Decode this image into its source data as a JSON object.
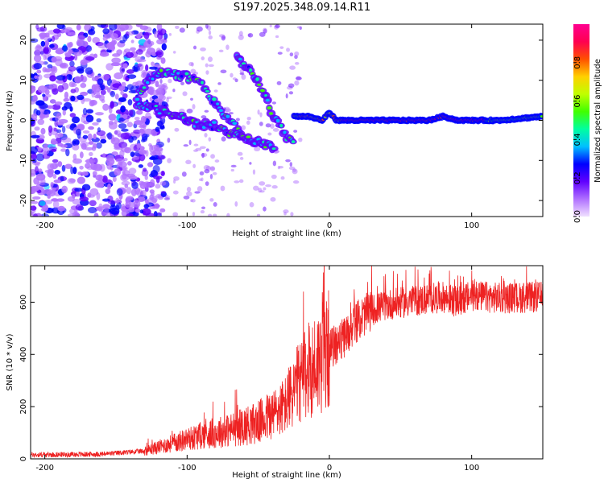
{
  "title": "S197.2025.348.09.14.R11",
  "colors": {
    "snr_line": "#ee2222",
    "axis": "#000000"
  },
  "chart_data": [
    {
      "type": "heatmap",
      "xlabel": "Height of straight line (km)",
      "ylabel": "Frequency (Hz)",
      "xlim": [
        -210,
        150
      ],
      "ylim": [
        -24,
        24
      ],
      "xticks": [
        -200,
        -100,
        0,
        100
      ],
      "yticks": [
        -20,
        -10,
        0,
        10,
        20
      ],
      "colorbar": {
        "label": "Normalized spectral amplitude",
        "range": [
          0,
          1
        ],
        "ticks": [
          "0.0",
          "0.2",
          "0.4",
          "0.6",
          "0.8"
        ],
        "tick_values": [
          0,
          0.2,
          0.4,
          0.6,
          0.8
        ],
        "colormap": [
          "#f0e0ff",
          "#b070ff",
          "#6000ff",
          "#0000ff",
          "#00c0ff",
          "#00ffa0",
          "#40ff00",
          "#c0ff00",
          "#ffd000",
          "#ff5000",
          "#ff0050",
          "#ff0090"
        ]
      },
      "features": [
        {
          "name": "upper branch",
          "x": [
            -135,
            -125,
            -115,
            -100,
            -90,
            -80,
            -70,
            -60
          ],
          "y": [
            6,
            11,
            12,
            11,
            9,
            4,
            0,
            -4
          ]
        },
        {
          "name": "lower branch",
          "x": [
            -135,
            -125,
            -115,
            -105,
            -95,
            -85,
            -75,
            -65,
            -55,
            -45,
            -38
          ],
          "y": [
            4,
            3,
            2,
            1,
            -1,
            -1,
            -2,
            -4,
            -5,
            -6,
            -7
          ]
        },
        {
          "name": "steep streaks",
          "x": [
            -65,
            -55,
            -45,
            -38,
            -30,
            -25
          ],
          "y": [
            16,
            12,
            6,
            0,
            -4,
            -6
          ]
        },
        {
          "name": "carrier",
          "x": [
            -25,
            -15,
            -5,
            0,
            5,
            15,
            40,
            70,
            80,
            90,
            100,
            120,
            150
          ],
          "y": [
            1,
            1,
            0,
            2,
            0,
            0,
            0,
            0,
            1,
            0,
            0,
            0,
            1
          ]
        }
      ]
    },
    {
      "type": "line",
      "xlabel": "Height of straight line (km)",
      "ylabel": "SNR (10 * v/v)",
      "xlim": [
        -210,
        150
      ],
      "ylim": [
        0,
        740
      ],
      "xticks": [
        -200,
        -100,
        0,
        100
      ],
      "yticks": [
        0,
        200,
        400,
        600
      ],
      "envelope": {
        "x": [
          -210,
          -160,
          -130,
          -110,
          -90,
          -70,
          -50,
          -40,
          -30,
          -25,
          -20,
          -15,
          -10,
          -5,
          0,
          10,
          20,
          30,
          40,
          60,
          80,
          90,
          100,
          120,
          150
        ],
        "y": [
          15,
          18,
          30,
          60,
          90,
          110,
          140,
          170,
          210,
          260,
          300,
          330,
          360,
          390,
          420,
          460,
          530,
          570,
          590,
          605,
          620,
          600,
          625,
          615,
          620
        ]
      }
    }
  ]
}
